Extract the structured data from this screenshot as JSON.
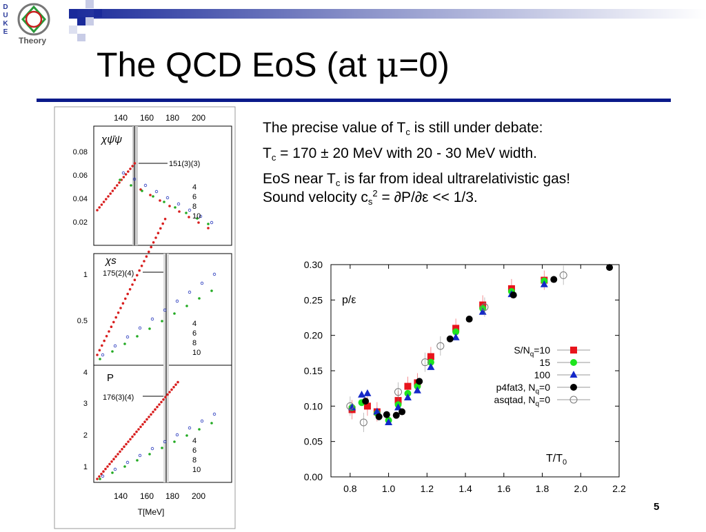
{
  "slide": {
    "title_main": "The QCD EoS (at ",
    "title_mu": "μ",
    "title_tail": "=0)",
    "page_number": "5",
    "logo_letters": [
      "D",
      "U",
      "K",
      "E"
    ],
    "logo_word": "Theory",
    "colors": {
      "title_rule": "#0a1a8a",
      "deco_blue": "#1a2a9a"
    }
  },
  "bullets": {
    "b1_pre": "The precise value of T",
    "b1_sub": "c",
    "b1_post": " is still under debate:",
    "b2_pre": "T",
    "b2_sub": "c",
    "b2_post": " = 170 ± 20 MeV with 20 - 30 MeV width.",
    "b3_pre": "EoS near T",
    "b3_sub": "c",
    "b3_post": " is far from ideal ultrarelativistic gas!",
    "b4_pre": "Sound velocity c",
    "b4_sub": "s",
    "b4_sup": "2",
    "b4_post": " = ∂P/∂ε << 1/3."
  },
  "left_figure": {
    "top_ticks": [
      "140",
      "160",
      "180",
      "200"
    ],
    "bottom_ticks": [
      "140",
      "160",
      "180",
      "200"
    ],
    "xlabel": "T[MeV]",
    "panels": [
      {
        "label": "χψ̄ψ",
        "annotation": "151(3)(3)",
        "yticks": [
          "0.08",
          "0.06",
          "0.04",
          "0.02"
        ],
        "legend": [
          "4",
          "6",
          "8",
          "10"
        ]
      },
      {
        "label": "χs",
        "annotation": "175(2)(4)",
        "yticks": [
          "1",
          "0.5"
        ],
        "legend": [
          "4",
          "6",
          "8",
          "10"
        ]
      },
      {
        "label": "P",
        "annotation": "176(3)(4)",
        "yticks": [
          "4",
          "3",
          "2",
          "1"
        ],
        "legend": [
          "4",
          "6",
          "8",
          "10"
        ]
      }
    ]
  },
  "chart_data": {
    "type": "scatter",
    "title": "",
    "annotation": "p/ε",
    "xlabel_pre": "T/T",
    "xlabel_sub": "0",
    "xlim": [
      0.7,
      2.2
    ],
    "ylim": [
      0.0,
      0.3
    ],
    "xticks": [
      "0.8",
      "1.0",
      "1.2",
      "1.4",
      "1.6",
      "1.8",
      "2.0",
      "2.2"
    ],
    "yticks": [
      "0.00",
      "0.05",
      "0.10",
      "0.15",
      "0.20",
      "0.25",
      "0.30"
    ],
    "legend_position": "right",
    "series": [
      {
        "name": "S/N",
        "name_sub": "q",
        "name_tail": "=10",
        "marker": "square",
        "color": "#e8141c",
        "x": [
          0.81,
          0.89,
          0.94,
          1.05,
          1.1,
          1.15,
          1.22,
          1.35,
          1.49,
          1.64,
          1.81
        ],
        "y": [
          0.095,
          0.1,
          0.092,
          0.108,
          0.128,
          0.133,
          0.17,
          0.21,
          0.243,
          0.266,
          0.278
        ]
      },
      {
        "name": "15",
        "marker": "circle",
        "color": "#1ee51e",
        "x": [
          0.81,
          0.86,
          0.94,
          1.0,
          1.05,
          1.1,
          1.15,
          1.22,
          1.35,
          1.49,
          1.64,
          1.81
        ],
        "y": [
          0.098,
          0.105,
          0.09,
          0.08,
          0.102,
          0.118,
          0.128,
          0.162,
          0.205,
          0.238,
          0.262,
          0.277
        ]
      },
      {
        "name": "100",
        "marker": "triangle",
        "color": "#1428c8",
        "x": [
          0.81,
          0.86,
          0.89,
          0.94,
          1.0,
          1.05,
          1.1,
          1.15,
          1.22,
          1.35,
          1.49,
          1.64,
          1.81
        ],
        "y": [
          0.098,
          0.116,
          0.118,
          0.092,
          0.077,
          0.098,
          0.112,
          0.122,
          0.155,
          0.197,
          0.233,
          0.258,
          0.272
        ]
      },
      {
        "name": "p4fat3, N",
        "name_sub": "q",
        "name_tail": "=0",
        "marker": "filled-circle",
        "color": "#000000",
        "x": [
          0.88,
          0.95,
          0.99,
          1.04,
          1.07,
          1.16,
          1.32,
          1.42,
          1.65,
          1.86,
          2.15
        ],
        "y": [
          0.107,
          0.085,
          0.088,
          0.087,
          0.092,
          0.135,
          0.195,
          0.223,
          0.257,
          0.279,
          0.296
        ]
      },
      {
        "name": "asqtad, N",
        "name_sub": "q",
        "name_tail": "=0",
        "marker": "open-circle",
        "color": "#777777",
        "x": [
          0.8,
          0.87,
          1.05,
          1.19,
          1.27,
          1.5,
          1.91
        ],
        "y": [
          0.1,
          0.077,
          0.12,
          0.162,
          0.185,
          0.24,
          0.285
        ]
      }
    ]
  }
}
